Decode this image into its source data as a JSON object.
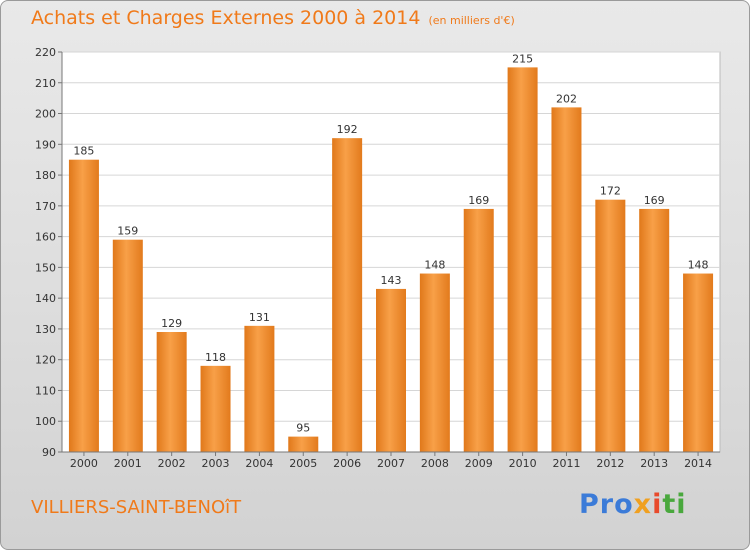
{
  "header": {
    "title": "Achats et Charges Externes 2000 à 2014",
    "unit": "(en milliers d'€)"
  },
  "footer": {
    "commune": "VILLIERS-SAINT-BENOîT",
    "logo": {
      "p1": "Pro",
      "p2": "x",
      "p3": "i",
      "p4": "ti"
    }
  },
  "chart_data": {
    "type": "bar",
    "title": "Achats et Charges Externes 2000 à 2014",
    "subtitle": "(en milliers d'€)",
    "categories": [
      "2000",
      "2001",
      "2002",
      "2003",
      "2004",
      "2005",
      "2006",
      "2007",
      "2008",
      "2009",
      "2010",
      "2011",
      "2012",
      "2013",
      "2014"
    ],
    "values": [
      185,
      159,
      129,
      118,
      131,
      95,
      192,
      143,
      148,
      169,
      215,
      202,
      172,
      169,
      148
    ],
    "ylim": [
      90,
      220
    ],
    "yticks": [
      90,
      100,
      110,
      120,
      130,
      140,
      150,
      160,
      170,
      180,
      190,
      200,
      210,
      220
    ],
    "grid": true,
    "bar_color": "#f08a28",
    "xlabel": "",
    "ylabel": ""
  }
}
